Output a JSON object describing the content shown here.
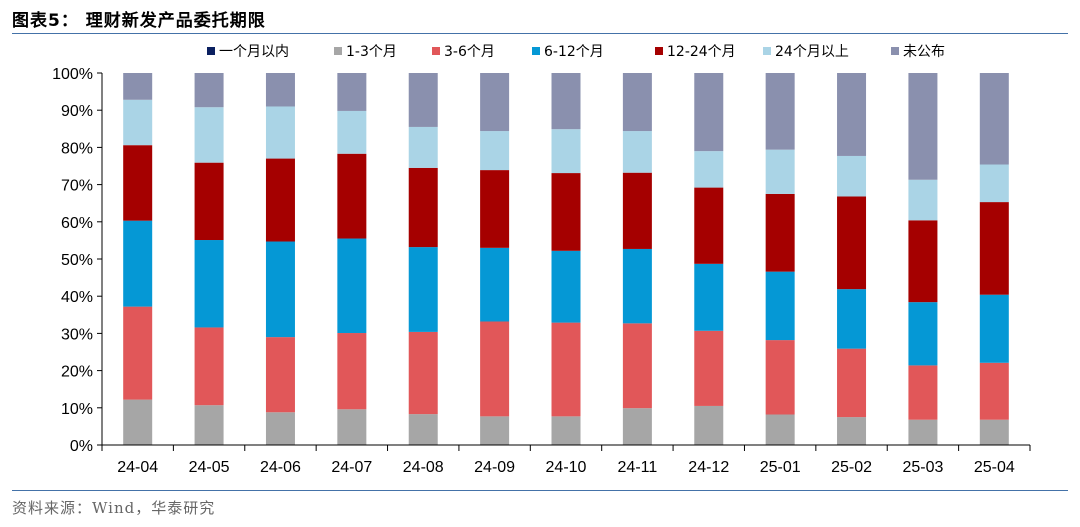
{
  "figure": {
    "title": "图表5：  理财新发产品委托期限",
    "source": "资料来源：Wind，华泰研究"
  },
  "chart_data": {
    "type": "bar",
    "stacked": true,
    "categories": [
      "24-04",
      "24-05",
      "24-06",
      "24-07",
      "24-08",
      "24-09",
      "24-10",
      "24-11",
      "24-12",
      "25-01",
      "25-02",
      "25-03",
      "25-04"
    ],
    "ylim": [
      0,
      100
    ],
    "yticks": [
      "0%",
      "10%",
      "20%",
      "30%",
      "40%",
      "50%",
      "60%",
      "70%",
      "80%",
      "90%",
      "100%"
    ],
    "legend_position": "top",
    "grid": false,
    "series": [
      {
        "name": "一个月以内",
        "color": "#0b2060",
        "values": [
          0,
          0,
          0,
          0,
          0,
          0,
          0,
          0,
          0,
          0,
          0,
          0,
          0
        ]
      },
      {
        "name": "1-3个月",
        "color": "#a6a6a6",
        "values": [
          12.2,
          10.7,
          8.8,
          9.6,
          8.3,
          7.7,
          7.7,
          9.9,
          10.5,
          8.2,
          7.5,
          6.8,
          6.8
        ]
      },
      {
        "name": "3-6个月",
        "color": "#e15759",
        "values": [
          25.0,
          20.9,
          20.2,
          20.5,
          22.1,
          25.5,
          25.2,
          22.8,
          20.2,
          20.0,
          18.4,
          14.6,
          15.3
        ]
      },
      {
        "name": "6-12个月",
        "color": "#0598d5",
        "values": [
          23.1,
          23.5,
          25.7,
          25.4,
          22.8,
          19.8,
          19.3,
          20.0,
          18.0,
          18.4,
          16.0,
          17.0,
          18.3
        ]
      },
      {
        "name": "12-24个月",
        "color": "#a50000",
        "values": [
          20.3,
          20.8,
          22.3,
          22.8,
          21.3,
          20.9,
          20.9,
          20.5,
          20.5,
          20.9,
          24.9,
          22.0,
          24.9
        ]
      },
      {
        "name": "24个月以上",
        "color": "#aad4e6",
        "values": [
          12.2,
          14.9,
          14.0,
          11.5,
          11.0,
          10.5,
          11.8,
          11.2,
          9.8,
          11.9,
          10.9,
          10.9,
          10.1
        ]
      },
      {
        "name": "未公布",
        "color": "#8a90ae",
        "values": [
          7.2,
          9.2,
          9.0,
          10.2,
          14.5,
          15.6,
          15.1,
          15.6,
          21.0,
          20.6,
          22.3,
          28.7,
          24.6
        ]
      }
    ]
  }
}
